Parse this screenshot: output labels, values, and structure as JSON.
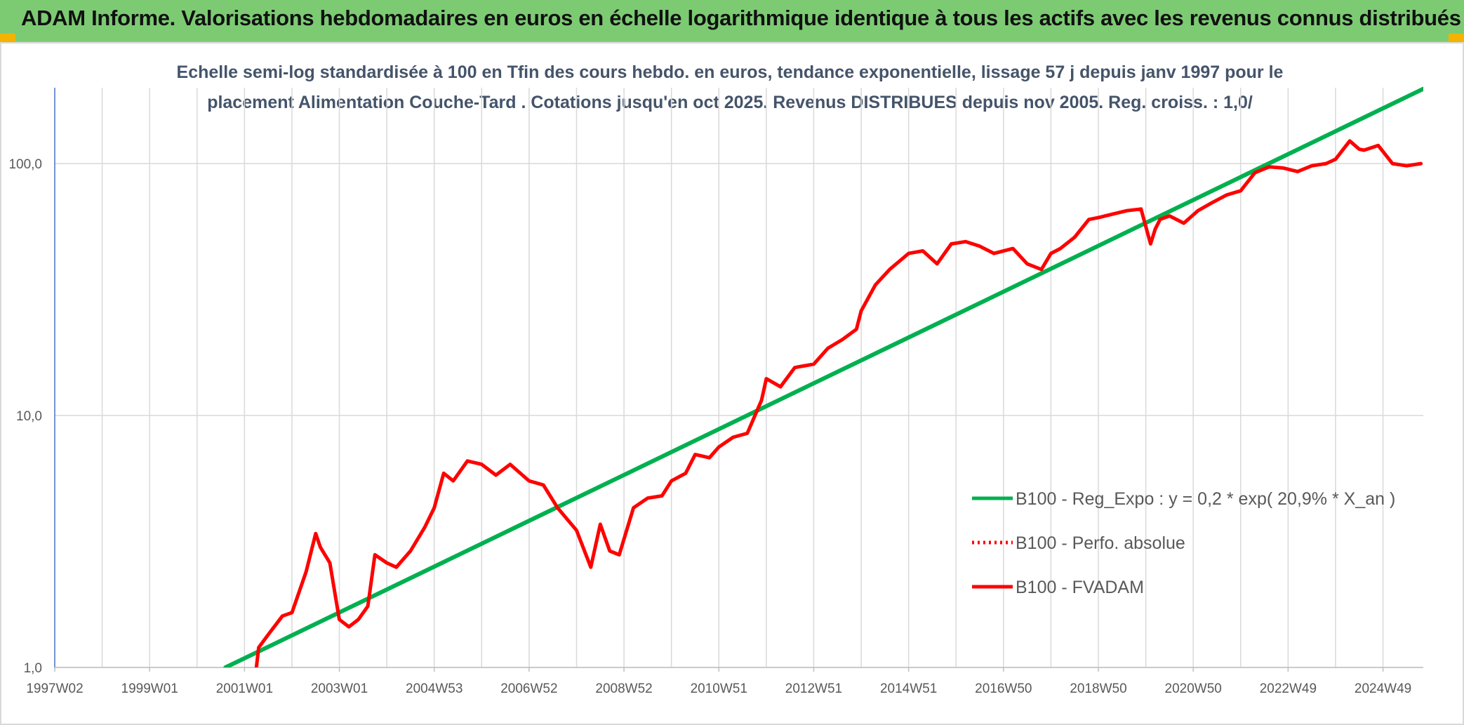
{
  "header": {
    "title": "ADAM Informe. Valorisations hebdomadaires en euros en échelle logarithmique identique à tous les actifs avec les revenus connus distribués"
  },
  "chart_data": {
    "type": "line",
    "title_line1": "Echelle semi-log standardisée à 100 en Tfin des cours hebdo. en euros, tendance exponentielle, lissage 57 j depuis janv 1997 pour le",
    "title_line2": "placement Alimentation Couche-Tard . Cotations jusqu'en oct 2025. Revenus DISTRIBUES depuis nov 2005. Reg. croiss. : 1,0/",
    "xlabel": "",
    "ylabel": "",
    "y_scale": "log",
    "ylim": [
      1,
      200
    ],
    "xlim": [
      1997.0,
      2025.85
    ],
    "grid": true,
    "legend_position": "right",
    "x_tick_labels": [
      "1997W02",
      "1999W01",
      "2001W01",
      "2003W01",
      "2004W53",
      "2006W52",
      "2008W52",
      "2010W51",
      "2012W51",
      "2014W51",
      "2016W50",
      "2018W50",
      "2020W50",
      "2022W49",
      "2024W49"
    ],
    "x_tick_values": [
      1997.0,
      1999.0,
      2001.0,
      2003.0,
      2005.0,
      2007.0,
      2009.0,
      2011.0,
      2013.0,
      2015.0,
      2017.0,
      2019.0,
      2021.0,
      2023.0,
      2025.0
    ],
    "y_tick_labels": [
      "1,0",
      "10,0",
      "100,0"
    ],
    "y_tick_values": [
      1,
      10,
      100
    ],
    "series": [
      {
        "name": "B100 - Reg_Expo : y = 0,2 * exp( 20,9% *  X_an )",
        "color": "#00b050",
        "style": "solid",
        "x": [
          2000.6,
          2025.85
        ],
        "y": [
          1.0,
          198
        ]
      },
      {
        "name": "B100 - Perfo. absolue",
        "color": "#ff0000",
        "style": "dotted",
        "x": [],
        "y": []
      },
      {
        "name": "B100 - FVADAM",
        "color": "#ff0000",
        "style": "solid",
        "x": [
          2001.25,
          2001.3,
          2001.5,
          2001.8,
          2002.0,
          2002.3,
          2002.5,
          2002.6,
          2002.8,
          2002.9,
          2003.0,
          2003.2,
          2003.4,
          2003.6,
          2003.75,
          2004.0,
          2004.2,
          2004.5,
          2004.8,
          2005.0,
          2005.2,
          2005.4,
          2005.7,
          2006.0,
          2006.3,
          2006.6,
          2007.0,
          2007.3,
          2007.6,
          2008.0,
          2008.3,
          2008.5,
          2008.7,
          2008.9,
          2009.2,
          2009.5,
          2009.8,
          2010.0,
          2010.3,
          2010.5,
          2010.8,
          2011.0,
          2011.3,
          2011.6,
          2011.9,
          2012.0,
          2012.3,
          2012.6,
          2013.0,
          2013.3,
          2013.6,
          2013.9,
          2014.0,
          2014.3,
          2014.6,
          2015.0,
          2015.3,
          2015.6,
          2015.9,
          2016.2,
          2016.5,
          2016.8,
          2017.2,
          2017.5,
          2017.8,
          2018.0,
          2018.2,
          2018.5,
          2018.8,
          2019.0,
          2019.3,
          2019.6,
          2019.9,
          2020.1,
          2020.2,
          2020.3,
          2020.5,
          2020.8,
          2021.1,
          2021.4,
          2021.7,
          2022.0,
          2022.3,
          2022.6,
          2022.9,
          2023.2,
          2023.5,
          2023.8,
          2024.0,
          2024.1,
          2024.3,
          2024.5,
          2024.6,
          2024.9,
          2025.2,
          2025.5,
          2025.8
        ],
        "y": [
          1.0,
          1.2,
          1.35,
          1.6,
          1.65,
          2.4,
          3.4,
          3.0,
          2.6,
          2.0,
          1.55,
          1.45,
          1.55,
          1.75,
          2.8,
          2.6,
          2.5,
          2.9,
          3.6,
          4.3,
          5.9,
          5.5,
          6.6,
          6.4,
          5.8,
          6.4,
          5.5,
          5.3,
          4.3,
          3.5,
          2.5,
          3.7,
          2.9,
          2.8,
          4.3,
          4.7,
          4.8,
          5.5,
          5.9,
          7.0,
          6.8,
          7.5,
          8.2,
          8.5,
          11.5,
          14.0,
          13.0,
          15.5,
          16.0,
          18.5,
          20.0,
          22.0,
          26.0,
          33.0,
          38.0,
          44.0,
          45.0,
          40.0,
          48.0,
          49.0,
          47.0,
          44.0,
          46.0,
          40.0,
          38.0,
          44.0,
          46.0,
          51.0,
          60.0,
          61.0,
          63.0,
          65.0,
          66.0,
          48.0,
          55.0,
          60.0,
          62.0,
          58.0,
          65.0,
          70.0,
          75.0,
          78.0,
          92.0,
          97.0,
          96.0,
          93.0,
          98.0,
          100.0,
          104.0,
          110.0,
          123.0,
          114.0,
          113.0,
          118.0,
          100.0,
          98.0,
          100.0
        ]
      }
    ]
  }
}
